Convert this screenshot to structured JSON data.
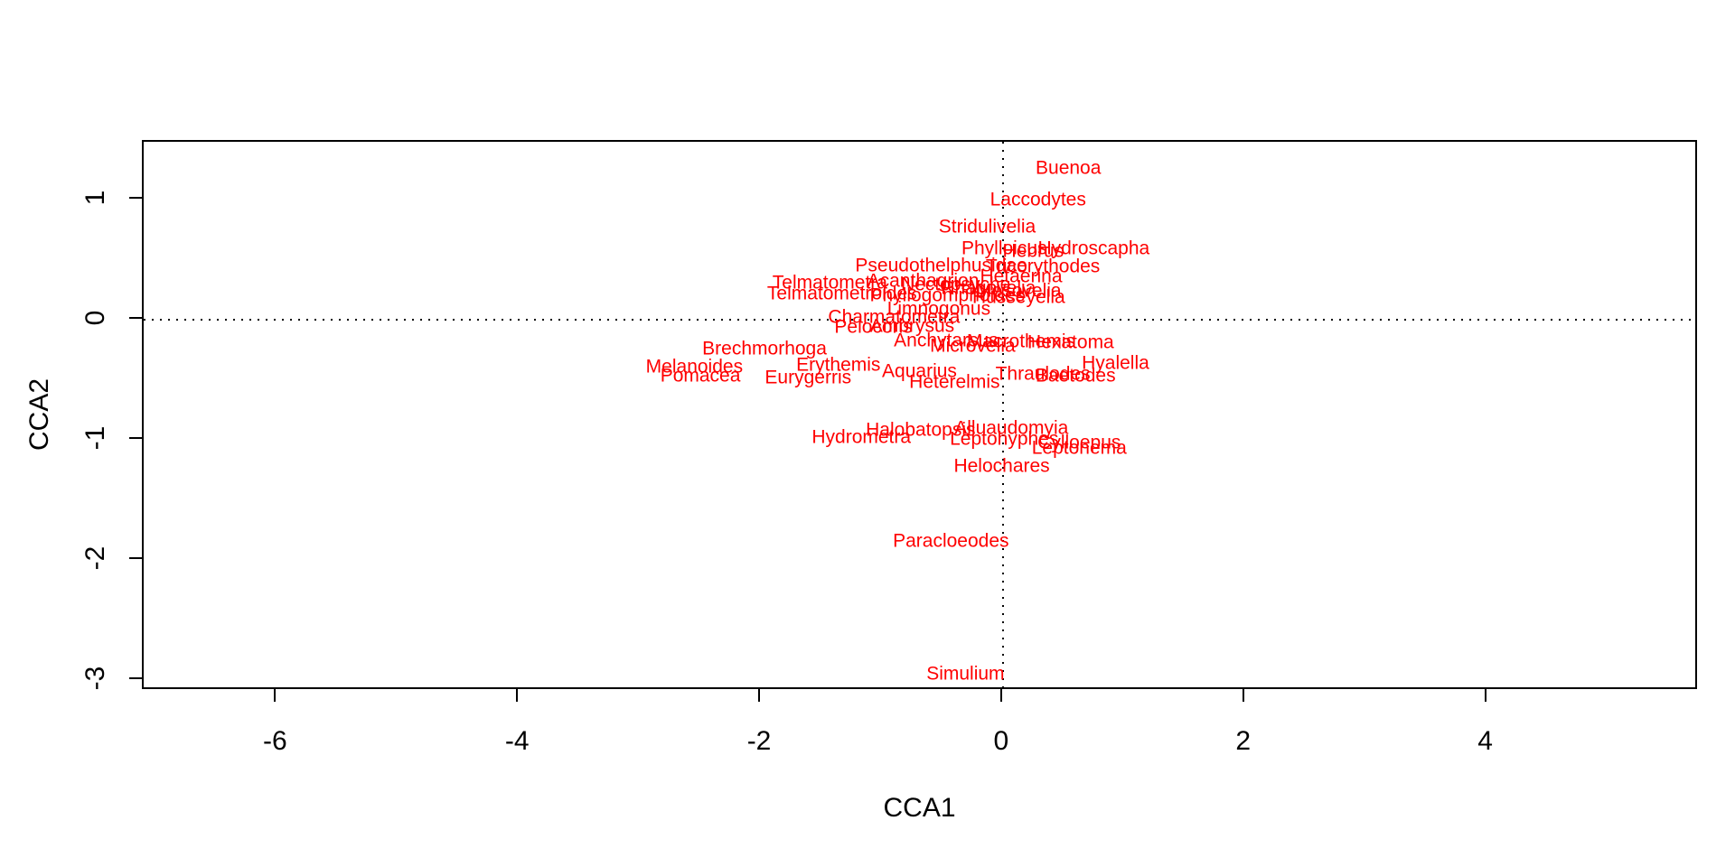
{
  "figure": {
    "background": "#ffffff",
    "species_label_color": "#ff0000",
    "axis_color": "#000000"
  },
  "chart_data": {
    "type": "scatter",
    "title": "",
    "xlabel": "CCA1",
    "ylabel": "CCA2",
    "xlim": [
      -7.1,
      5.75
    ],
    "ylim": [
      -3.09,
      1.48
    ],
    "x_ticks": [
      -6,
      -4,
      -2,
      0,
      2,
      4
    ],
    "y_ticks": [
      -3,
      -2,
      -1,
      0,
      1
    ],
    "grid": false,
    "legend": false,
    "reference_lines": {
      "vertical_at_x": 0,
      "horizontal_at_y": 0,
      "style": "dotted"
    },
    "points": [
      {
        "label": "Buenoa",
        "cca1": 0.54,
        "cca2": 1.26
      },
      {
        "label": "Laccodytes",
        "cca1": 0.29,
        "cca2": 1.0
      },
      {
        "label": "Stridulivelia",
        "cca1": -0.13,
        "cca2": 0.77
      },
      {
        "label": "Phylloicus",
        "cca1": 0.01,
        "cca2": 0.59
      },
      {
        "label": "Hebrus",
        "cca1": 0.25,
        "cca2": 0.57
      },
      {
        "label": "Hydroscapha",
        "cca1": 0.75,
        "cca2": 0.59
      },
      {
        "label": "Pseudothelphusidae",
        "cca1": -0.51,
        "cca2": 0.45
      },
      {
        "label": "Tricorythodes",
        "cca1": 0.33,
        "cca2": 0.44
      },
      {
        "label": "Hetaerina",
        "cca1": 0.15,
        "cca2": 0.36
      },
      {
        "label": "Telmatometra",
        "cca1": -1.43,
        "cca2": 0.31
      },
      {
        "label": "Acanthagrion",
        "cca1": -0.66,
        "cca2": 0.32
      },
      {
        "label": "Nectopsyche",
        "cca1": -0.39,
        "cca2": 0.29
      },
      {
        "label": "Rhagovelia",
        "cca1": -0.12,
        "cca2": 0.26
      },
      {
        "label": "Mesovelia",
        "cca1": 0.13,
        "cca2": 0.24
      },
      {
        "label": "Telmatometroides",
        "cca1": -1.33,
        "cca2": 0.22
      },
      {
        "label": "Phyllogomphoides",
        "cca1": -0.46,
        "cca2": 0.2
      },
      {
        "label": "Husseyella",
        "cca1": 0.13,
        "cca2": 0.19
      },
      {
        "label": "Limnogonus",
        "cca1": -0.53,
        "cca2": 0.09
      },
      {
        "label": "Charmatometra",
        "cca1": -0.9,
        "cca2": 0.02
      },
      {
        "label": "Pelocoris",
        "cca1": -1.07,
        "cca2": -0.06
      },
      {
        "label": "Ambrysus",
        "cca1": -0.75,
        "cca2": -0.05
      },
      {
        "label": "Anchytarsus",
        "cca1": -0.47,
        "cca2": -0.17
      },
      {
        "label": "Macrothemis",
        "cca1": 0.15,
        "cca2": -0.18
      },
      {
        "label": "Microvelia",
        "cca1": -0.25,
        "cca2": -0.22
      },
      {
        "label": "Hexatoma",
        "cca1": 0.56,
        "cca2": -0.19
      },
      {
        "label": "Hyalella",
        "cca1": 0.93,
        "cca2": -0.36
      },
      {
        "label": "Thraulodes",
        "cca1": 0.33,
        "cca2": -0.45
      },
      {
        "label": "Baetodes",
        "cca1": 0.6,
        "cca2": -0.47
      },
      {
        "label": "Erythemis",
        "cca1": -1.36,
        "cca2": -0.38
      },
      {
        "label": "Melanoides",
        "cca1": -2.55,
        "cca2": -0.39
      },
      {
        "label": "Pomacea",
        "cca1": -2.5,
        "cca2": -0.47
      },
      {
        "label": "Eurygerris",
        "cca1": -1.61,
        "cca2": -0.48
      },
      {
        "label": "Aquarius",
        "cca1": -0.69,
        "cca2": -0.43
      },
      {
        "label": "Heterelmis",
        "cca1": -0.4,
        "cca2": -0.52
      },
      {
        "label": "Brechmorhoga",
        "cca1": -1.97,
        "cca2": -0.24
      },
      {
        "label": "Hydrometra",
        "cca1": -1.17,
        "cca2": -0.98
      },
      {
        "label": "Halobatopsis",
        "cca1": -0.68,
        "cca2": -0.92
      },
      {
        "label": "Alluaudomyia",
        "cca1": 0.07,
        "cca2": -0.9
      },
      {
        "label": "Leptohyphes",
        "cca1": 0.01,
        "cca2": -0.99
      },
      {
        "label": "Cylloepus",
        "cca1": 0.63,
        "cca2": -1.02
      },
      {
        "label": "Leptonema",
        "cca1": 0.63,
        "cca2": -1.07
      },
      {
        "label": "Helochares",
        "cca1": -0.01,
        "cca2": -1.22
      },
      {
        "label": "Paracloeodes",
        "cca1": -0.43,
        "cca2": -1.84
      },
      {
        "label": "Simulium",
        "cca1": -0.31,
        "cca2": -2.95
      }
    ]
  }
}
